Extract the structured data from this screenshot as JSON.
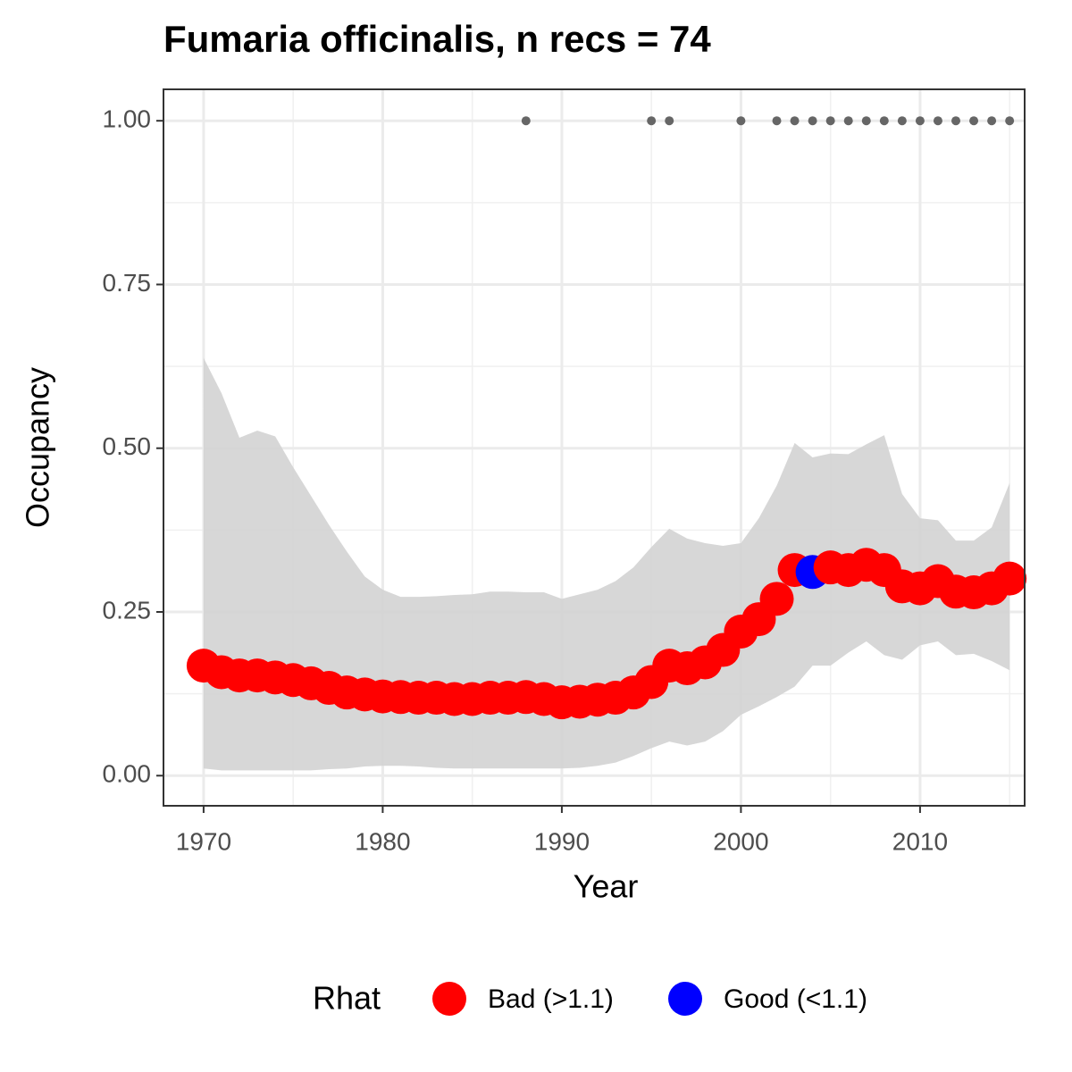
{
  "chart_data": {
    "type": "line",
    "title": "Fumaria officinalis, n recs = 74",
    "x_label": "Year",
    "y_label": "Occupancy",
    "legend_title": "Rhat",
    "x": [
      1970,
      1971,
      1972,
      1973,
      1974,
      1975,
      1976,
      1977,
      1978,
      1979,
      1980,
      1981,
      1982,
      1983,
      1984,
      1985,
      1986,
      1987,
      1988,
      1989,
      1990,
      1991,
      1992,
      1993,
      1994,
      1995,
      1996,
      1997,
      1998,
      1999,
      2000,
      2001,
      2002,
      2003,
      2004,
      2005,
      2006,
      2007,
      2008,
      2009,
      2010,
      2011,
      2012,
      2013,
      2014,
      2015
    ],
    "series": [
      {
        "name": "Bad (>1.1)",
        "color": "#ff0000",
        "values": [
          0.168,
          0.158,
          0.153,
          0.153,
          0.15,
          0.146,
          0.141,
          0.134,
          0.127,
          0.124,
          0.121,
          0.12,
          0.119,
          0.119,
          0.117,
          0.117,
          0.119,
          0.119,
          0.12,
          0.117,
          0.112,
          0.113,
          0.116,
          0.119,
          0.127,
          0.143,
          0.168,
          0.164,
          0.173,
          0.192,
          0.22,
          0.239,
          0.27,
          0.314,
          null,
          0.318,
          0.314,
          0.322,
          0.314,
          0.289,
          0.286,
          0.297,
          0.281,
          0.28,
          0.286,
          0.301
        ]
      },
      {
        "name": "Good (<1.1)",
        "color": "#0000ff",
        "values": [
          null,
          null,
          null,
          null,
          null,
          null,
          null,
          null,
          null,
          null,
          null,
          null,
          null,
          null,
          null,
          null,
          null,
          null,
          null,
          null,
          null,
          null,
          null,
          null,
          null,
          null,
          null,
          null,
          null,
          null,
          null,
          null,
          null,
          null,
          0.311,
          null,
          null,
          null,
          null,
          null,
          null,
          null,
          null,
          null,
          null,
          null
        ]
      }
    ],
    "ribbon": {
      "color": "#d3d3d3",
      "upper": [
        0.638,
        0.584,
        0.516,
        0.527,
        0.518,
        0.471,
        0.427,
        0.383,
        0.342,
        0.304,
        0.284,
        0.273,
        0.273,
        0.274,
        0.276,
        0.277,
        0.281,
        0.281,
        0.28,
        0.28,
        0.27,
        0.277,
        0.284,
        0.297,
        0.318,
        0.349,
        0.377,
        0.362,
        0.355,
        0.351,
        0.355,
        0.393,
        0.443,
        0.508,
        0.486,
        0.492,
        0.491,
        0.506,
        0.52,
        0.43,
        0.393,
        0.39,
        0.359,
        0.359,
        0.379,
        0.447
      ],
      "lower": [
        0.011,
        0.008,
        0.008,
        0.008,
        0.008,
        0.008,
        0.008,
        0.01,
        0.011,
        0.014,
        0.015,
        0.015,
        0.014,
        0.012,
        0.011,
        0.011,
        0.011,
        0.011,
        0.011,
        0.011,
        0.011,
        0.012,
        0.015,
        0.02,
        0.03,
        0.042,
        0.052,
        0.046,
        0.052,
        0.068,
        0.093,
        0.106,
        0.12,
        0.136,
        0.168,
        0.168,
        0.188,
        0.205,
        0.184,
        0.177,
        0.199,
        0.205,
        0.184,
        0.186,
        0.175,
        0.161
      ]
    },
    "records": {
      "color": "#666666",
      "x": [
        1988,
        1995,
        1996,
        2000,
        2002,
        2003,
        2004,
        2005,
        2006,
        2007,
        2008,
        2009,
        2010,
        2011,
        2012,
        2013,
        2014,
        2015
      ],
      "values": [
        1,
        1,
        1,
        1,
        1,
        1,
        1,
        1,
        1,
        1,
        1,
        1,
        1,
        1,
        1,
        1,
        1,
        1
      ]
    },
    "xlim": [
      1967.76,
      2015.84
    ],
    "ylim": [
      -0.046,
      1.048
    ],
    "xticks": [
      1970,
      1980,
      1990,
      2000,
      2010
    ],
    "yticks": [
      {
        "value": 0,
        "label": "0.00"
      },
      {
        "value": 0.25,
        "label": "0.25"
      },
      {
        "value": 0.5,
        "label": "0.50"
      },
      {
        "value": 0.75,
        "label": "0.75"
      },
      {
        "value": 1,
        "label": "1.00"
      }
    ],
    "x_minor_grid": [
      1975,
      1985,
      1995,
      2005,
      2015
    ],
    "y_minor_grid": [
      0.125,
      0.375,
      0.625,
      0.875
    ],
    "grid": true,
    "legend_position": "bottom"
  }
}
